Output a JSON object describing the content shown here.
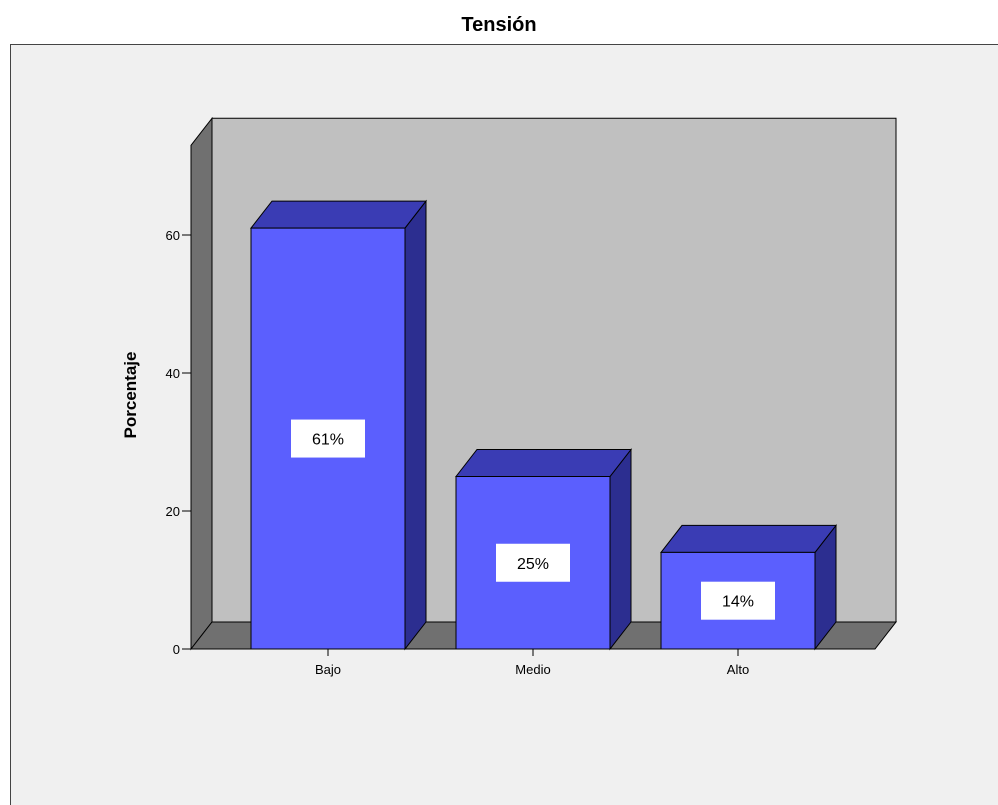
{
  "chart_data": {
    "type": "bar",
    "title": "Tensión",
    "xlabel": "",
    "ylabel": "Porcentaje",
    "categories": [
      "Bajo",
      "Medio",
      "Alto"
    ],
    "values": [
      61,
      25,
      14
    ],
    "data_labels": [
      "61%",
      "25%",
      "14%"
    ],
    "yticks": [
      0,
      20,
      40,
      60
    ],
    "ylim": [
      0,
      73
    ],
    "grid": false,
    "style": "3d",
    "colors": {
      "bar_front": "#5b5ffe",
      "bar_top": "#3a3cb4",
      "bar_side": "#2c2e90",
      "back_wall": "#c0c0c0",
      "side_wall": "#707070",
      "floor": "#707070",
      "plot_background": "#f0f0f0"
    }
  }
}
